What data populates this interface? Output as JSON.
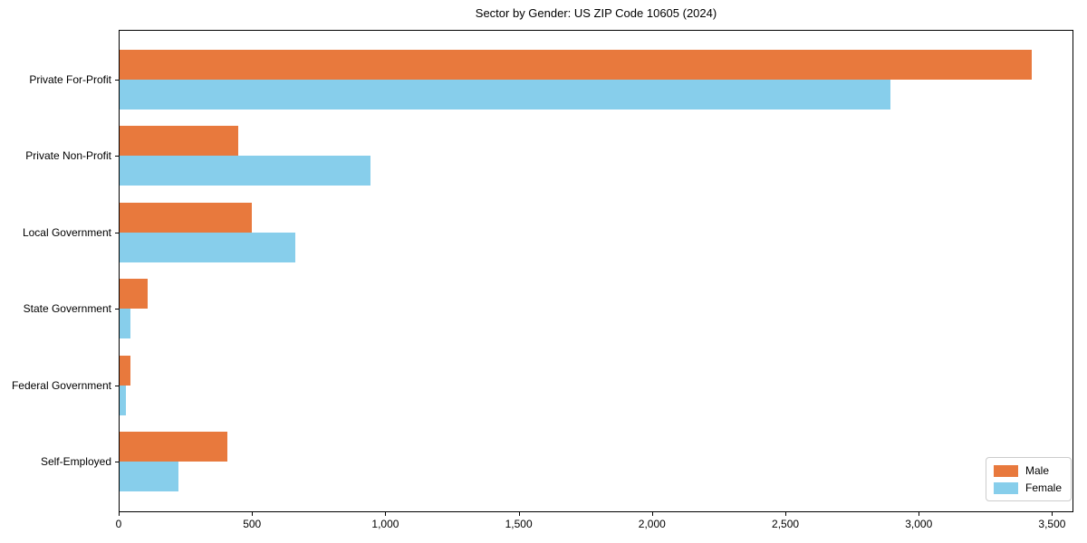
{
  "title": "Sector by Gender: US ZIP Code 10605 (2024)",
  "chart_data": {
    "type": "bar",
    "orientation": "horizontal",
    "title": "Sector by Gender: US ZIP Code 10605 (2024)",
    "categories": [
      "Private For-Profit",
      "Private Non-Profit",
      "Local Government",
      "State Government",
      "Federal Government",
      "Self-Employed"
    ],
    "series": [
      {
        "name": "Male",
        "color": "#e8793d",
        "values": [
          3420,
          445,
          495,
          105,
          42,
          405
        ]
      },
      {
        "name": "Female",
        "color": "#87ceeb",
        "values": [
          2890,
          940,
          660,
          40,
          25,
          220
        ]
      }
    ],
    "xlabel": "",
    "ylabel": "",
    "xlim": [
      0,
      3580
    ],
    "x_ticks": [
      0,
      500,
      1000,
      1500,
      2000,
      2500,
      3000,
      3500
    ],
    "x_tick_labels": [
      "0",
      "500",
      "1,000",
      "1,500",
      "2,000",
      "2,500",
      "3,000",
      "3,500"
    ],
    "grid": false,
    "legend_position": "lower right",
    "legend_entries": [
      "Male",
      "Female"
    ]
  }
}
